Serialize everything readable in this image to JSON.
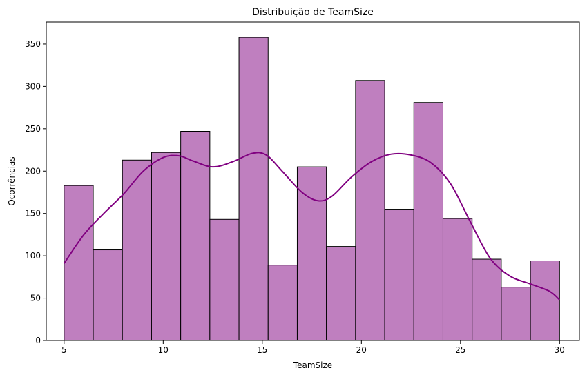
{
  "chart_data": {
    "type": "bar",
    "title": "Distribuição de TeamSize",
    "xlabel": "TeamSize",
    "ylabel": "Ocorrências",
    "xlim": [
      4.1,
      31.0
    ],
    "ylim": [
      0,
      376
    ],
    "x_ticks": [
      5,
      10,
      15,
      20,
      25,
      30
    ],
    "y_ticks": [
      0,
      50,
      100,
      150,
      200,
      250,
      300,
      350
    ],
    "bin_edges": [
      5.0,
      6.4706,
      7.9412,
      9.4118,
      10.8824,
      12.3529,
      13.8235,
      15.2941,
      16.7647,
      18.2353,
      19.7059,
      21.1765,
      22.6471,
      24.1176,
      25.5882,
      27.0588,
      28.5294,
      30.0
    ],
    "values": [
      183,
      107,
      213,
      222,
      247,
      143,
      358,
      89,
      205,
      111,
      307,
      155,
      281,
      144,
      96,
      63,
      94
    ],
    "kde": {
      "x": [
        5.0,
        6.0,
        7.0,
        8.0,
        9.0,
        10.0,
        10.8,
        11.5,
        12.5,
        13.5,
        14.5,
        15.2,
        16.0,
        17.0,
        17.8,
        18.5,
        19.5,
        20.5,
        21.5,
        22.5,
        23.5,
        24.5,
        25.5,
        26.5,
        27.5,
        28.5,
        29.5,
        30.0
      ],
      "y": [
        91,
        125,
        150,
        173,
        200,
        216,
        218,
        212,
        205,
        211,
        221,
        219,
        200,
        175,
        165,
        170,
        193,
        211,
        220,
        219,
        210,
        185,
        140,
        97,
        76,
        67,
        58,
        48
      ]
    },
    "colors": {
      "bar_fill": "#bf7fbf",
      "bar_edge": "#000000",
      "kde_line": "#800080"
    },
    "grid": false,
    "legend": "none"
  }
}
